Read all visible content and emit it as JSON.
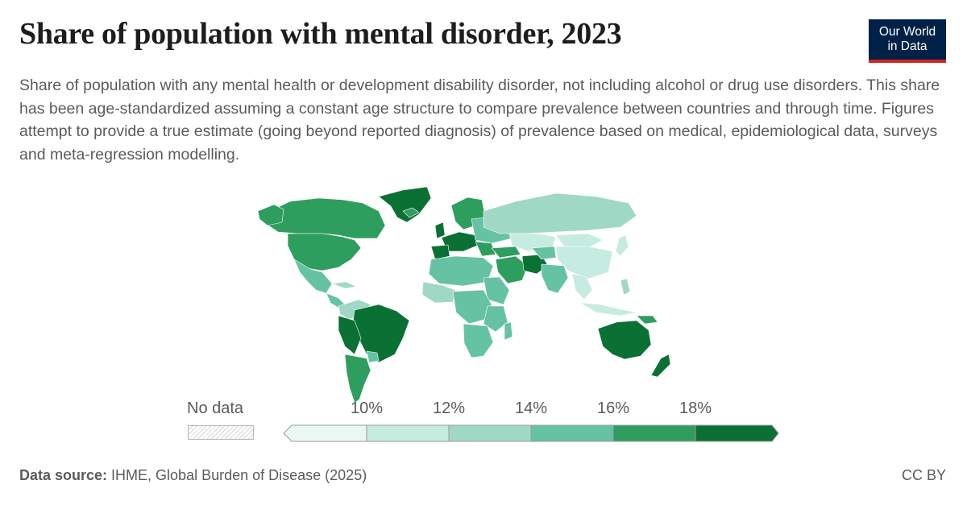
{
  "title": "Share of population with mental disorder, 2023",
  "subtitle": "Share of population with any mental health or development disability disorder, not including alcohol or drug use disorders. This share has been age-standardized assuming a constant age structure to compare prevalence between countries and through time. Figures attempt to provide a true estimate (going beyond reported diagnosis) of prevalence based on medical, epidemiological data, surveys and meta-regression modelling.",
  "logo": {
    "line1": "Our World",
    "line2": "in Data"
  },
  "legend": {
    "no_data_label": "No data",
    "ticks": [
      "10%",
      "12%",
      "14%",
      "16%",
      "18%"
    ],
    "bins": [
      "#eaf7f5",
      "#c6ebe1",
      "#9fd9c6",
      "#65c2a2",
      "#2e9e5e",
      "#0b7034"
    ]
  },
  "footer": {
    "source_label": "Data source:",
    "source_text": " IHME, Global Burden of Disease (2025)",
    "license": "CC BY"
  },
  "colors": {
    "ocean": "#ffffff",
    "border": "#ffffff",
    "text": "#5b5b5b",
    "title": "#1d1d1d"
  }
}
